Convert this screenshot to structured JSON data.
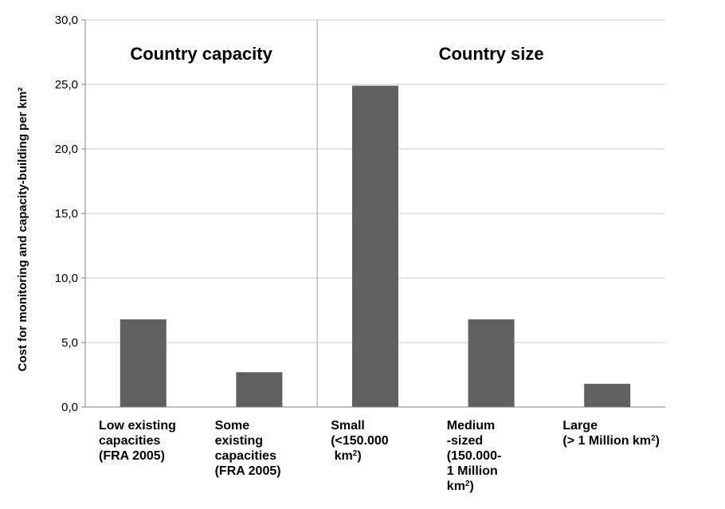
{
  "chart_data": {
    "type": "bar",
    "title": "",
    "xlabel": "",
    "ylabel": "Cost for monitoring and capacity-building per km²",
    "ylim": [
      0,
      30
    ],
    "yticks": [
      "0,0",
      "5,0",
      "10,0",
      "15,0",
      "20,0",
      "25,0",
      "30,0"
    ],
    "grid": true,
    "bar_color": "#606060",
    "sections": [
      {
        "label": "Country capacity"
      },
      {
        "label": "Country size"
      }
    ],
    "categories": [
      {
        "lines": [
          [
            "Low existing"
          ],
          [
            "capacities"
          ],
          [
            "(FRA 2005)"
          ]
        ]
      },
      {
        "lines": [
          [
            "Some"
          ],
          [
            "existing"
          ],
          [
            "capacities"
          ],
          [
            "(FRA 2005)"
          ]
        ]
      },
      {
        "lines": [
          [
            "Small"
          ],
          [
            "(<150.000"
          ],
          [
            " km",
            "2",
            ")"
          ]
        ]
      },
      {
        "lines": [
          [
            "Medium"
          ],
          [
            "-sized"
          ],
          [
            "(150.000-"
          ],
          [
            "1 Million"
          ],
          [
            "km",
            "2",
            ")"
          ]
        ]
      },
      {
        "lines": [
          [
            "Large"
          ],
          [
            "(> 1 Million km",
            "2",
            ")"
          ]
        ]
      }
    ],
    "values": [
      6.8,
      2.7,
      24.9,
      6.8,
      1.8
    ]
  }
}
